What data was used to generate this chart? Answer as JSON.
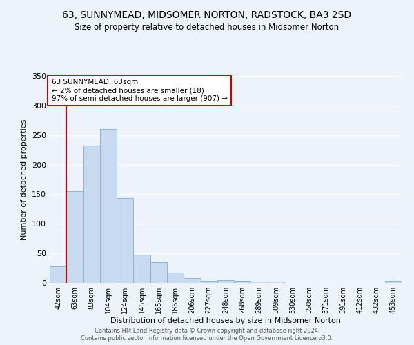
{
  "title": "63, SUNNYMEAD, MIDSOMER NORTON, RADSTOCK, BA3 2SD",
  "subtitle": "Size of property relative to detached houses in Midsomer Norton",
  "xlabel": "Distribution of detached houses by size in Midsomer Norton",
  "ylabel": "Number of detached properties",
  "bar_color": "#c8daf0",
  "bar_edge_color": "#8ab4d8",
  "background_color": "#eef2fb",
  "grid_color": "#ffffff",
  "vline_color": "#cc0000",
  "vline_x_index": 1,
  "annotation_title": "63 SUNNYMEAD: 63sqm",
  "annotation_line1": "← 2% of detached houses are smaller (18)",
  "annotation_line2": "97% of semi-detached houses are larger (907) →",
  "annotation_box_color": "#ffffff",
  "annotation_border_color": "#cc0000",
  "categories": [
    "42sqm",
    "63sqm",
    "83sqm",
    "104sqm",
    "124sqm",
    "145sqm",
    "165sqm",
    "186sqm",
    "206sqm",
    "227sqm",
    "248sqm",
    "268sqm",
    "289sqm",
    "309sqm",
    "330sqm",
    "350sqm",
    "371sqm",
    "391sqm",
    "412sqm",
    "432sqm",
    "453sqm"
  ],
  "values": [
    28,
    155,
    232,
    260,
    143,
    48,
    35,
    17,
    8,
    4,
    5,
    3,
    2,
    2,
    0,
    0,
    0,
    0,
    0,
    0,
    3
  ],
  "ylim": [
    0,
    350
  ],
  "yticks": [
    0,
    50,
    100,
    150,
    200,
    250,
    300,
    350
  ],
  "footer1": "Contains HM Land Registry data © Crown copyright and database right 2024.",
  "footer2": "Contains public sector information licensed under the Open Government Licence v3.0."
}
